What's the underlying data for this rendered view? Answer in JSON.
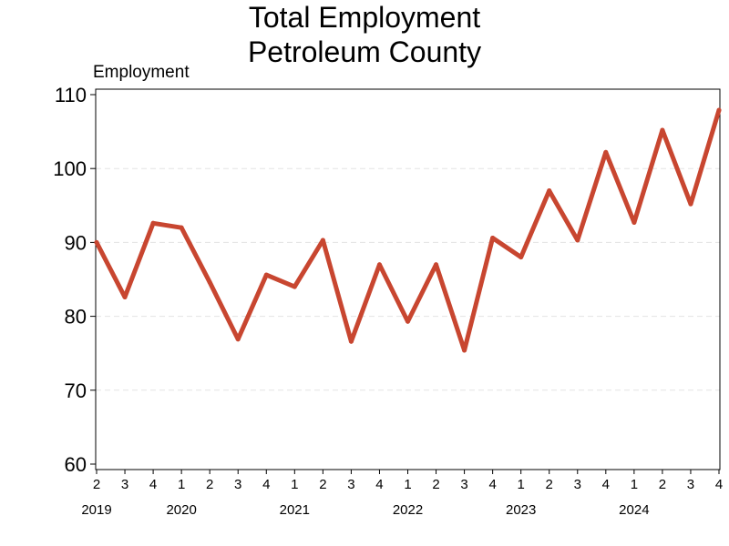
{
  "chart_data": {
    "type": "line",
    "title": [
      "Total Employment",
      "Petroleum County"
    ],
    "ylabel": "Employment",
    "xlabel": "",
    "ylim": [
      60,
      110
    ],
    "yticks": [
      60,
      70,
      80,
      90,
      100,
      110
    ],
    "grid": "horizontal-dashed",
    "line_color": "#c84630",
    "quarters": [
      "2",
      "3",
      "4",
      "1",
      "2",
      "3",
      "4",
      "1",
      "2",
      "3",
      "4",
      "1",
      "2",
      "3",
      "4",
      "1",
      "2",
      "3",
      "4",
      "1",
      "2",
      "3",
      "4"
    ],
    "years": [
      {
        "label": "2019",
        "start_index": 0
      },
      {
        "label": "2020",
        "start_index": 3
      },
      {
        "label": "2021",
        "start_index": 7
      },
      {
        "label": "2022",
        "start_index": 11
      },
      {
        "label": "2023",
        "start_index": 15
      },
      {
        "label": "2024",
        "start_index": 19
      }
    ],
    "series": [
      {
        "values": [
          90.0,
          82.6,
          92.6,
          92.0,
          84.6,
          76.9,
          85.6,
          84.0,
          90.3,
          76.6,
          87.0,
          79.3,
          87.0,
          75.4,
          90.6,
          88.0,
          97.0,
          90.3,
          102.2,
          92.7,
          105.2,
          95.2,
          107.9
        ]
      }
    ]
  }
}
